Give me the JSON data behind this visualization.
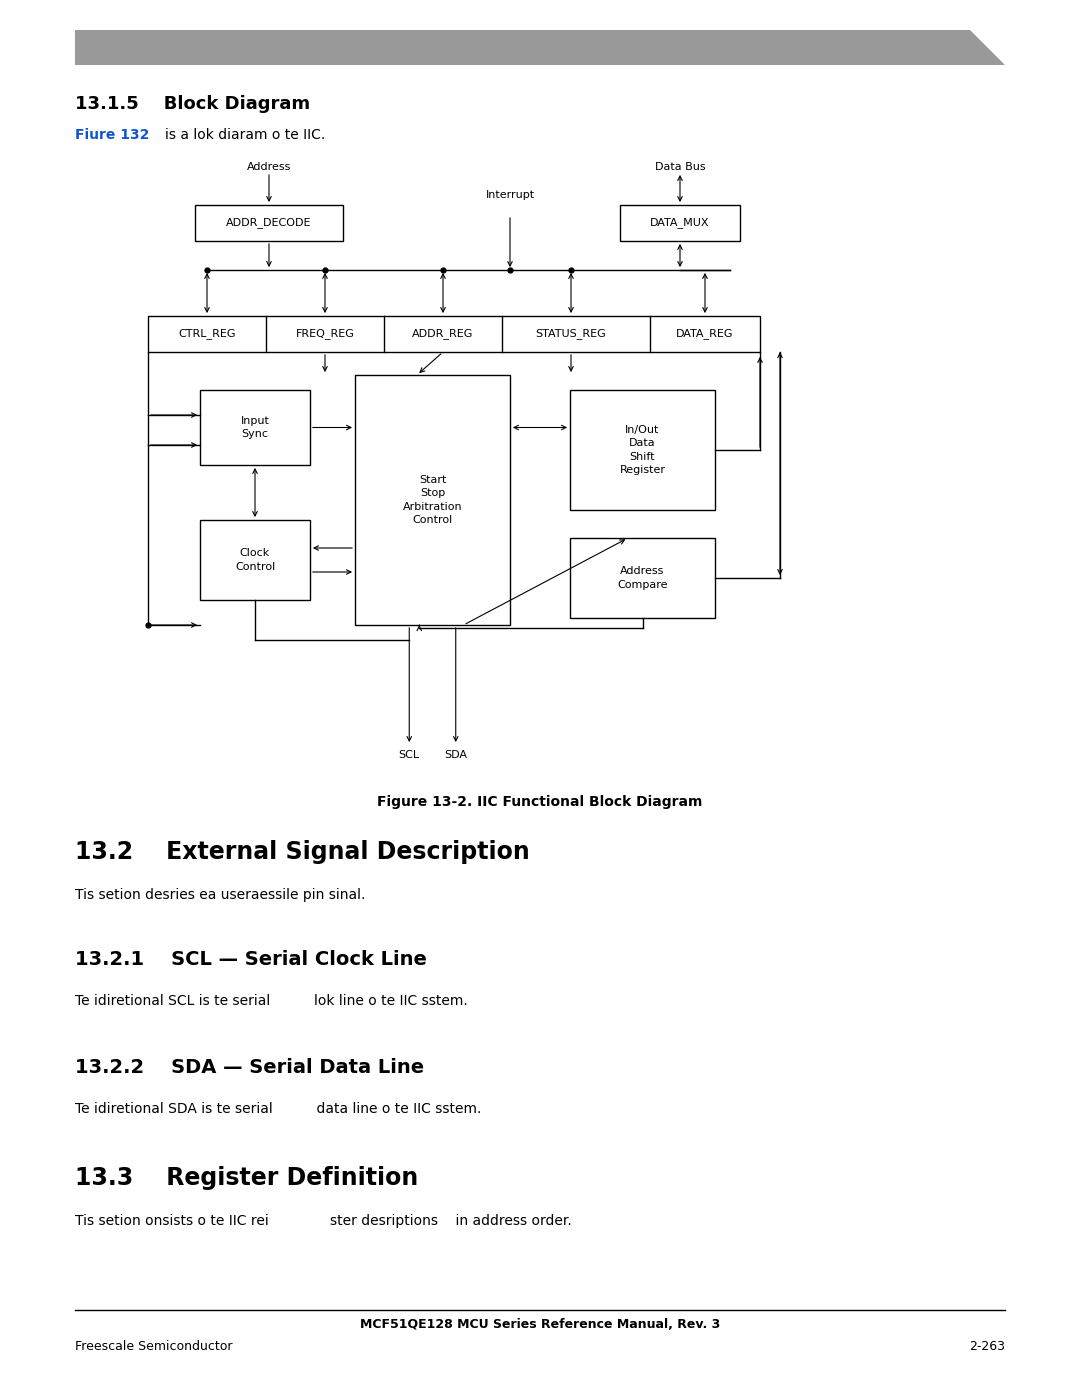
{
  "bg_color": "#ffffff",
  "page_width": 10.8,
  "page_height": 13.97,
  "header_bar_color": "#999999",
  "section_title_1": "13.1.5",
  "section_title_1_text": "Block Diagram",
  "figure_ref_blue": "Fiure 132",
  "figure_ref_text": "    is a lok diaram o te IIC.",
  "figure_caption": "Figure 13-2. IIC Functional Block Diagram",
  "section_title_2": "13.2",
  "section_title_2_text": "External Signal Description",
  "section_body_2": "Tis setion desries ea useraessile pin sinal.",
  "section_title_3": "13.2.1",
  "section_title_3_text": "SCL — Serial Clock Line",
  "section_body_3": "Te idiretional SCL is te serial          lok line o te IIC sstem.",
  "section_title_4": "13.2.2",
  "section_title_4_text": "SDA — Serial Data Line",
  "section_body_4": "Te idiretional SDA is te serial          data line o te IIC sstem.",
  "section_title_5": "13.3",
  "section_title_5_text": "Register Definition",
  "section_body_5": "Tis setion onsists o te IIC rei              ster desriptions    in address order.",
  "footer_center": "MCF51QE128 MCU Series Reference Manual, Rev. 3",
  "footer_left": "Freescale Semiconductor",
  "footer_right": "2-263"
}
